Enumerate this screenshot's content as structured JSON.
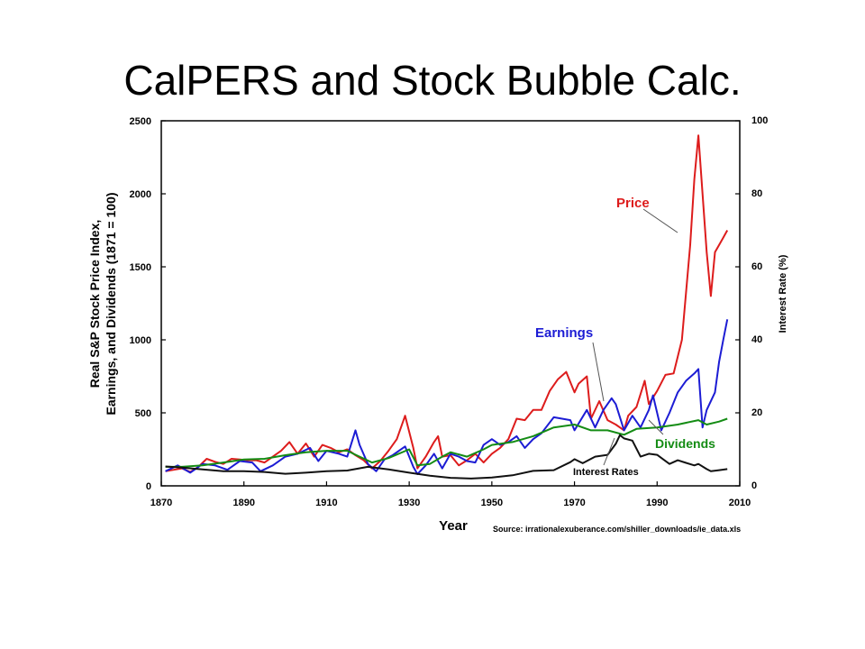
{
  "slide": {
    "title": "CalPERS and Stock Bubble Calc."
  },
  "chart_data": {
    "type": "line",
    "xlabel": "Year",
    "ylabel_left_lines": [
      "Real S&P Stock Price Index,",
      "Earnings, and Dividends (1871 = 100)"
    ],
    "ylabel_right": "Interest Rate (%)",
    "xlim": [
      1870,
      2010
    ],
    "ylim_left": [
      0,
      2500
    ],
    "ylim_right": [
      0,
      100
    ],
    "x_ticks": [
      1870,
      1890,
      1910,
      1930,
      1950,
      1970,
      1990,
      2010
    ],
    "y_left_ticks": [
      0,
      500,
      1000,
      1500,
      2000,
      2500
    ],
    "y_right_ticks": [
      0,
      20,
      40,
      60,
      80,
      100
    ],
    "grid": false,
    "source": "Source: irrationalexuberance.com/shiller_downloads/ie_data.xls",
    "series": [
      {
        "name": "Price",
        "color": "#dd1c1c",
        "axis": "left",
        "points": [
          [
            1871,
            100
          ],
          [
            1873,
            110
          ],
          [
            1875,
            120
          ],
          [
            1877,
            95
          ],
          [
            1879,
            130
          ],
          [
            1881,
            185
          ],
          [
            1883,
            165
          ],
          [
            1885,
            150
          ],
          [
            1887,
            185
          ],
          [
            1889,
            180
          ],
          [
            1891,
            175
          ],
          [
            1893,
            175
          ],
          [
            1895,
            160
          ],
          [
            1897,
            200
          ],
          [
            1899,
            240
          ],
          [
            1901,
            300
          ],
          [
            1903,
            220
          ],
          [
            1905,
            290
          ],
          [
            1907,
            200
          ],
          [
            1909,
            280
          ],
          [
            1911,
            260
          ],
          [
            1913,
            230
          ],
          [
            1915,
            250
          ],
          [
            1917,
            210
          ],
          [
            1919,
            175
          ],
          [
            1921,
            120
          ],
          [
            1923,
            170
          ],
          [
            1925,
            240
          ],
          [
            1927,
            320
          ],
          [
            1929,
            480
          ],
          [
            1931,
            260
          ],
          [
            1932,
            120
          ],
          [
            1934,
            200
          ],
          [
            1936,
            300
          ],
          [
            1937,
            340
          ],
          [
            1938,
            200
          ],
          [
            1940,
            210
          ],
          [
            1942,
            140
          ],
          [
            1944,
            175
          ],
          [
            1946,
            220
          ],
          [
            1948,
            160
          ],
          [
            1950,
            220
          ],
          [
            1952,
            260
          ],
          [
            1954,
            320
          ],
          [
            1956,
            460
          ],
          [
            1958,
            450
          ],
          [
            1960,
            520
          ],
          [
            1962,
            520
          ],
          [
            1964,
            650
          ],
          [
            1966,
            730
          ],
          [
            1968,
            780
          ],
          [
            1970,
            640
          ],
          [
            1971,
            700
          ],
          [
            1973,
            750
          ],
          [
            1974,
            460
          ],
          [
            1976,
            580
          ],
          [
            1978,
            450
          ],
          [
            1980,
            420
          ],
          [
            1982,
            380
          ],
          [
            1983,
            480
          ],
          [
            1985,
            540
          ],
          [
            1987,
            720
          ],
          [
            1988,
            560
          ],
          [
            1990,
            650
          ],
          [
            1992,
            760
          ],
          [
            1994,
            770
          ],
          [
            1996,
            1000
          ],
          [
            1998,
            1650
          ],
          [
            1999,
            2100
          ],
          [
            2000,
            2400
          ],
          [
            2001,
            2000
          ],
          [
            2002,
            1600
          ],
          [
            2003,
            1300
          ],
          [
            2004,
            1600
          ],
          [
            2005,
            1650
          ],
          [
            2006,
            1700
          ],
          [
            2007,
            1750
          ]
        ]
      },
      {
        "name": "Earnings",
        "color": "#1c1cd4",
        "axis": "left",
        "points": [
          [
            1871,
            100
          ],
          [
            1874,
            140
          ],
          [
            1877,
            90
          ],
          [
            1880,
            150
          ],
          [
            1883,
            140
          ],
          [
            1886,
            110
          ],
          [
            1889,
            170
          ],
          [
            1892,
            160
          ],
          [
            1894,
            100
          ],
          [
            1897,
            140
          ],
          [
            1900,
            200
          ],
          [
            1903,
            220
          ],
          [
            1906,
            260
          ],
          [
            1908,
            170
          ],
          [
            1910,
            240
          ],
          [
            1913,
            220
          ],
          [
            1915,
            200
          ],
          [
            1917,
            380
          ],
          [
            1918,
            280
          ],
          [
            1920,
            150
          ],
          [
            1922,
            100
          ],
          [
            1924,
            180
          ],
          [
            1926,
            210
          ],
          [
            1929,
            270
          ],
          [
            1931,
            130
          ],
          [
            1932,
            80
          ],
          [
            1934,
            140
          ],
          [
            1936,
            220
          ],
          [
            1938,
            120
          ],
          [
            1940,
            220
          ],
          [
            1942,
            200
          ],
          [
            1944,
            170
          ],
          [
            1946,
            160
          ],
          [
            1948,
            280
          ],
          [
            1950,
            320
          ],
          [
            1952,
            280
          ],
          [
            1954,
            300
          ],
          [
            1956,
            340
          ],
          [
            1958,
            260
          ],
          [
            1960,
            320
          ],
          [
            1962,
            360
          ],
          [
            1965,
            470
          ],
          [
            1967,
            460
          ],
          [
            1969,
            450
          ],
          [
            1970,
            380
          ],
          [
            1973,
            520
          ],
          [
            1975,
            400
          ],
          [
            1977,
            520
          ],
          [
            1979,
            600
          ],
          [
            1980,
            560
          ],
          [
            1982,
            380
          ],
          [
            1984,
            480
          ],
          [
            1986,
            400
          ],
          [
            1988,
            520
          ],
          [
            1989,
            620
          ],
          [
            1991,
            380
          ],
          [
            1993,
            500
          ],
          [
            1995,
            640
          ],
          [
            1997,
            720
          ],
          [
            1999,
            770
          ],
          [
            2000,
            800
          ],
          [
            2001,
            400
          ],
          [
            2002,
            520
          ],
          [
            2004,
            640
          ],
          [
            2005,
            850
          ],
          [
            2006,
            1000
          ],
          [
            2007,
            1140
          ]
        ]
      },
      {
        "name": "Dividends",
        "color": "#148c14",
        "axis": "left",
        "points": [
          [
            1871,
            130
          ],
          [
            1875,
            130
          ],
          [
            1880,
            140
          ],
          [
            1885,
            160
          ],
          [
            1890,
            180
          ],
          [
            1895,
            185
          ],
          [
            1900,
            210
          ],
          [
            1905,
            230
          ],
          [
            1910,
            240
          ],
          [
            1915,
            240
          ],
          [
            1918,
            200
          ],
          [
            1921,
            160
          ],
          [
            1925,
            190
          ],
          [
            1930,
            250
          ],
          [
            1932,
            140
          ],
          [
            1935,
            150
          ],
          [
            1938,
            200
          ],
          [
            1940,
            230
          ],
          [
            1944,
            200
          ],
          [
            1948,
            250
          ],
          [
            1950,
            280
          ],
          [
            1955,
            300
          ],
          [
            1960,
            340
          ],
          [
            1965,
            400
          ],
          [
            1970,
            420
          ],
          [
            1974,
            380
          ],
          [
            1978,
            380
          ],
          [
            1982,
            350
          ],
          [
            1985,
            390
          ],
          [
            1990,
            400
          ],
          [
            1995,
            420
          ],
          [
            2000,
            450
          ],
          [
            2002,
            420
          ],
          [
            2005,
            440
          ],
          [
            2007,
            460
          ]
        ]
      },
      {
        "name": "Interest Rates",
        "color": "#111111",
        "axis": "right",
        "points": [
          [
            1871,
            5.3
          ],
          [
            1875,
            5
          ],
          [
            1880,
            4.5
          ],
          [
            1885,
            4
          ],
          [
            1890,
            4
          ],
          [
            1895,
            3.8
          ],
          [
            1900,
            3.3
          ],
          [
            1905,
            3.6
          ],
          [
            1910,
            4
          ],
          [
            1915,
            4.2
          ],
          [
            1920,
            5.2
          ],
          [
            1925,
            4.5
          ],
          [
            1930,
            3.6
          ],
          [
            1935,
            2.8
          ],
          [
            1940,
            2.2
          ],
          [
            1945,
            2.0
          ],
          [
            1950,
            2.3
          ],
          [
            1955,
            2.9
          ],
          [
            1960,
            4.1
          ],
          [
            1965,
            4.3
          ],
          [
            1969,
            6.5
          ],
          [
            1970,
            7.3
          ],
          [
            1972,
            6.2
          ],
          [
            1975,
            8
          ],
          [
            1978,
            8.5
          ],
          [
            1980,
            11.5
          ],
          [
            1981,
            13.9
          ],
          [
            1982,
            13
          ],
          [
            1984,
            12.4
          ],
          [
            1986,
            8
          ],
          [
            1988,
            8.8
          ],
          [
            1990,
            8.5
          ],
          [
            1993,
            6
          ],
          [
            1995,
            7
          ],
          [
            1997,
            6.3
          ],
          [
            1999,
            5.6
          ],
          [
            2000,
            6
          ],
          [
            2002,
            4.6
          ],
          [
            2003,
            4
          ],
          [
            2005,
            4.3
          ],
          [
            2007,
            4.6
          ]
        ]
      }
    ],
    "annotations": [
      {
        "text": "Price",
        "series": "Price"
      },
      {
        "text": "Earnings",
        "series": "Earnings"
      },
      {
        "text": "Dividends",
        "series": "Dividends"
      },
      {
        "text": "Interest Rates",
        "series": "Interest Rates"
      }
    ]
  }
}
